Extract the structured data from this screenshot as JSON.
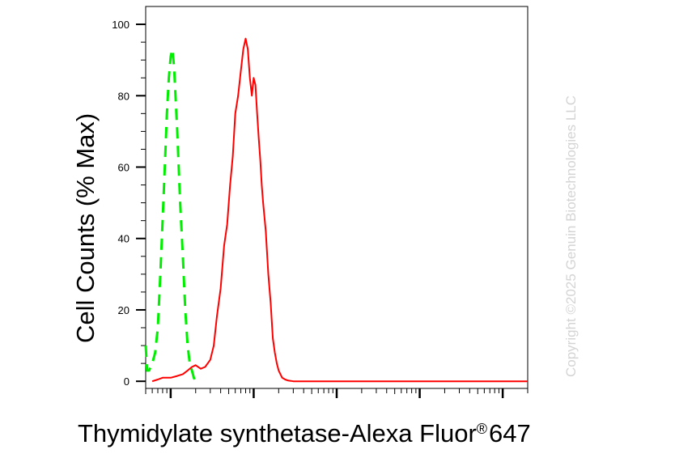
{
  "chart_data": {
    "type": "line",
    "title": "",
    "xlabel_main": "Thymidylate synthetase-Alexa Fluor",
    "xlabel_reg": "®",
    "xlabel_num": "647",
    "ylabel": "Cell Counts (% Max)",
    "x_scale": "log",
    "xlim": [
      0.5,
      20000
    ],
    "ylim": [
      -2,
      105
    ],
    "yticks": [
      0,
      20,
      40,
      60,
      80,
      100
    ],
    "grid": false,
    "legend": "none",
    "series": [
      {
        "color": "#00ee00",
        "style": "dashed",
        "x": [
          0.5,
          0.52,
          0.55,
          0.6,
          0.65,
          0.7,
          0.75,
          0.8,
          0.85,
          0.9,
          0.95,
          1.0,
          1.05,
          1.1,
          1.2,
          1.3,
          1.4,
          1.5,
          1.6,
          1.7,
          1.8,
          1.9,
          2.0,
          2.1,
          2.3
        ],
        "y": [
          10,
          3,
          3,
          5,
          8,
          15,
          30,
          45,
          60,
          75,
          85,
          91,
          93,
          88,
          70,
          50,
          35,
          20,
          10,
          5,
          3,
          1,
          0,
          0,
          0
        ]
      },
      {
        "color": "#ff0000",
        "style": "solid",
        "x": [
          0.6,
          0.7,
          0.8,
          0.9,
          1.0,
          1.2,
          1.4,
          1.6,
          1.8,
          2.0,
          2.3,
          2.6,
          3.0,
          3.3,
          3.6,
          4.0,
          4.4,
          4.8,
          5.2,
          5.6,
          6.0,
          6.5,
          7.0,
          7.5,
          8.0,
          8.5,
          9.0,
          9.5,
          10.0,
          10.5,
          11.0,
          11.5,
          12.0,
          12.5,
          13.0,
          14.0,
          15.0,
          16.0,
          17.0,
          18.0,
          19.0,
          20.0,
          22.0,
          24.0,
          26.0,
          28.0,
          30.0,
          35.0,
          40.0,
          50.0,
          70.0,
          100.0,
          1000.0,
          20000.0
        ],
        "y": [
          0,
          0.5,
          1,
          1,
          1,
          1.5,
          2,
          3,
          4,
          4.5,
          3.5,
          4,
          6,
          10,
          18,
          26,
          38,
          44,
          55,
          63,
          75,
          80,
          87,
          93,
          96,
          93,
          85,
          80,
          85,
          83,
          75,
          68,
          62,
          55,
          50,
          42,
          30,
          22,
          12,
          8,
          5,
          3,
          1,
          0.5,
          0.2,
          0.1,
          0,
          0,
          0,
          0,
          0,
          0,
          0,
          0
        ]
      }
    ]
  },
  "watermark": "Copyright ©2025 Genuin Biotechnologies LLC"
}
